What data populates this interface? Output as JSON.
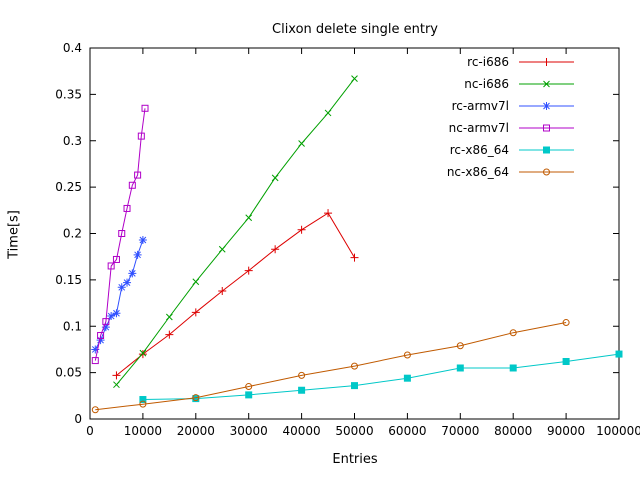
{
  "chart_data": {
    "type": "line",
    "title": "Clixon delete single entry",
    "xlabel": "Entries",
    "ylabel": "Time[s]",
    "xlim": [
      0,
      100000
    ],
    "ylim": [
      0,
      0.4
    ],
    "grid": false,
    "legend_position": "top-right-inside",
    "x_ticks": [
      0,
      10000,
      20000,
      30000,
      40000,
      50000,
      60000,
      70000,
      80000,
      90000,
      100000
    ],
    "x_tick_labels": [
      "0",
      "10000",
      "20000",
      "30000",
      "40000",
      "50000",
      "60000",
      "70000",
      "80000",
      "90000",
      "100000"
    ],
    "y_ticks": [
      0,
      0.05,
      0.1,
      0.15,
      0.2,
      0.25,
      0.3,
      0.35,
      0.4
    ],
    "y_tick_labels": [
      "0",
      "0.05",
      "0.1",
      "0.15",
      "0.2",
      "0.25",
      "0.3",
      "0.35",
      "0.4"
    ],
    "axis_color": "#000000",
    "series": [
      {
        "name": "rc-i686",
        "color": "#dd0000",
        "marker": "plus",
        "points": [
          [
            5000,
            0.047
          ],
          [
            10000,
            0.07
          ],
          [
            15000,
            0.091
          ],
          [
            20000,
            0.115
          ],
          [
            25000,
            0.138
          ],
          [
            30000,
            0.16
          ],
          [
            35000,
            0.183
          ],
          [
            40000,
            0.204
          ],
          [
            45000,
            0.222
          ],
          [
            50000,
            0.174
          ]
        ]
      },
      {
        "name": "nc-i686",
        "color": "#00a000",
        "marker": "cross",
        "points": [
          [
            5000,
            0.037
          ],
          [
            10000,
            0.071
          ],
          [
            15000,
            0.11
          ],
          [
            20000,
            0.148
          ],
          [
            25000,
            0.183
          ],
          [
            30000,
            0.217
          ],
          [
            35000,
            0.26
          ],
          [
            40000,
            0.297
          ],
          [
            45000,
            0.33
          ],
          [
            50000,
            0.367
          ]
        ]
      },
      {
        "name": "rc-armv7l",
        "color": "#3050ff",
        "marker": "asterisk",
        "points": [
          [
            1000,
            0.075
          ],
          [
            2000,
            0.085
          ],
          [
            3000,
            0.099
          ],
          [
            4000,
            0.111
          ],
          [
            5000,
            0.114
          ],
          [
            6000,
            0.142
          ],
          [
            7000,
            0.147
          ],
          [
            8000,
            0.157
          ],
          [
            9000,
            0.177
          ],
          [
            10000,
            0.193
          ]
        ]
      },
      {
        "name": "nc-armv7l",
        "color": "#b000c8",
        "marker": "square-open",
        "points": [
          [
            1000,
            0.063
          ],
          [
            2000,
            0.09
          ],
          [
            3000,
            0.105
          ],
          [
            4000,
            0.165
          ],
          [
            5000,
            0.172
          ],
          [
            6000,
            0.2
          ],
          [
            7000,
            0.227
          ],
          [
            8000,
            0.252
          ],
          [
            9000,
            0.263
          ],
          [
            9700,
            0.305
          ],
          [
            10400,
            0.335
          ]
        ]
      },
      {
        "name": "rc-x86_64",
        "color": "#00c8c8",
        "marker": "square-filled",
        "points": [
          [
            10000,
            0.021
          ],
          [
            20000,
            0.022
          ],
          [
            30000,
            0.026
          ],
          [
            40000,
            0.031
          ],
          [
            50000,
            0.036
          ],
          [
            60000,
            0.044
          ],
          [
            70000,
            0.055
          ],
          [
            80000,
            0.055
          ],
          [
            90000,
            0.062
          ],
          [
            100000,
            0.07
          ]
        ]
      },
      {
        "name": "nc-x86_64",
        "color": "#c05a00",
        "marker": "circle-open",
        "points": [
          [
            1000,
            0.01
          ],
          [
            10000,
            0.016
          ],
          [
            20000,
            0.023
          ],
          [
            30000,
            0.035
          ],
          [
            40000,
            0.047
          ],
          [
            50000,
            0.057
          ],
          [
            60000,
            0.069
          ],
          [
            70000,
            0.079
          ],
          [
            80000,
            0.093
          ],
          [
            90000,
            0.104
          ]
        ]
      }
    ]
  }
}
